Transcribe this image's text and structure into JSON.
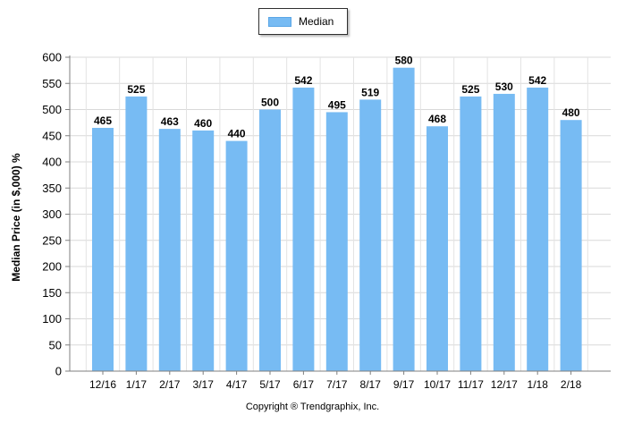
{
  "legend": {
    "label": "Median",
    "color": "#77bbf3"
  },
  "footer": {
    "copyright": "Copyright ® Trendgraphix, Inc."
  },
  "chart_data": {
    "type": "bar",
    "title": "",
    "xlabel": "",
    "ylabel": "Median Price (in $,000) %",
    "ylim": [
      0,
      600
    ],
    "yticks": [
      0,
      50,
      100,
      150,
      200,
      250,
      300,
      350,
      400,
      450,
      500,
      550,
      600
    ],
    "grid": true,
    "legend_position": "top-center",
    "categories": [
      "12/16",
      "1/17",
      "2/17",
      "3/17",
      "4/17",
      "5/17",
      "6/17",
      "7/17",
      "8/17",
      "9/17",
      "10/17",
      "11/17",
      "12/17",
      "1/18",
      "2/18"
    ],
    "series": [
      {
        "name": "Median",
        "color": "#77bbf3",
        "values": [
          465,
          525,
          463,
          460,
          440,
          500,
          542,
          495,
          519,
          580,
          468,
          525,
          530,
          542,
          480
        ]
      }
    ]
  }
}
